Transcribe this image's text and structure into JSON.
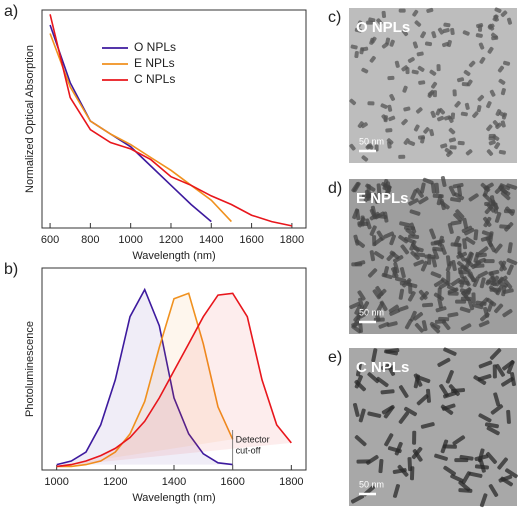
{
  "chart_data": [
    {
      "type": "line",
      "panel_label": "a)",
      "xlabel": "Wavelength (nm)",
      "ylabel": "Normalized Optical Absorption",
      "x": [
        600,
        700,
        800,
        900,
        1000,
        1100,
        1200,
        1300,
        1400,
        1500,
        1600,
        1700,
        1800
      ],
      "series": [
        {
          "name": "O NPLs",
          "color": "#3d1a9e",
          "values": [
            0.95,
            0.68,
            0.5,
            0.44,
            0.38,
            0.29,
            0.2,
            0.11,
            0.03,
            null,
            null,
            null,
            null
          ]
        },
        {
          "name": "E NPLs",
          "color": "#f0911e",
          "values": [
            0.91,
            0.66,
            0.5,
            0.44,
            0.39,
            0.33,
            0.27,
            0.2,
            0.13,
            0.03,
            null,
            null,
            null
          ]
        },
        {
          "name": "C NPLs",
          "color": "#e8161c",
          "values": [
            1.0,
            0.61,
            0.46,
            0.4,
            0.37,
            0.32,
            0.24,
            0.2,
            0.15,
            0.11,
            0.06,
            0.03,
            0.01
          ]
        }
      ],
      "xlim": [
        560,
        1870
      ],
      "xticks": [
        600,
        800,
        1000,
        1200,
        1400,
        1600,
        1800
      ],
      "ylim": [
        0,
        1.02
      ],
      "legend": "upper right"
    },
    {
      "type": "area",
      "panel_label": "b)",
      "xlabel": "Wavelength (nm)",
      "ylabel": "Photoluminescence",
      "x": [
        1000,
        1050,
        1100,
        1150,
        1200,
        1250,
        1300,
        1350,
        1400,
        1450,
        1500,
        1550,
        1600,
        1650,
        1700,
        1750,
        1800
      ],
      "series": [
        {
          "color": "#3d1a9e",
          "values": [
            0.03,
            0.05,
            0.1,
            0.25,
            0.5,
            0.85,
            1.0,
            0.8,
            0.4,
            0.2,
            0.09,
            0.04,
            0.03,
            null,
            null,
            null,
            null
          ]
        },
        {
          "color": "#f0911e",
          "values": [
            0.02,
            0.02,
            0.03,
            0.05,
            0.1,
            0.2,
            0.38,
            0.68,
            0.95,
            0.98,
            0.7,
            0.35,
            0.17,
            null,
            null,
            null,
            null
          ]
        },
        {
          "color": "#e8161c",
          "values": [
            0.02,
            0.03,
            0.05,
            0.08,
            0.12,
            0.18,
            0.27,
            0.4,
            0.55,
            0.7,
            0.85,
            0.97,
            0.98,
            0.85,
            0.5,
            0.25,
            0.15
          ]
        }
      ],
      "annotation": {
        "lines": [
          "Detector",
          "cut-off"
        ],
        "x": 1600
      },
      "xlim": [
        950,
        1850
      ],
      "xticks": [
        1000,
        1200,
        1400,
        1600,
        1800
      ],
      "ylim": [
        0,
        1.12
      ]
    }
  ],
  "images": [
    {
      "panel_label": "c)",
      "title": "O NPLs",
      "scale_bar": "50 nm"
    },
    {
      "panel_label": "d)",
      "title": "E NPLs",
      "scale_bar": "50 nm"
    },
    {
      "panel_label": "e)",
      "title": "C NPLs",
      "scale_bar": "50 nm"
    }
  ]
}
